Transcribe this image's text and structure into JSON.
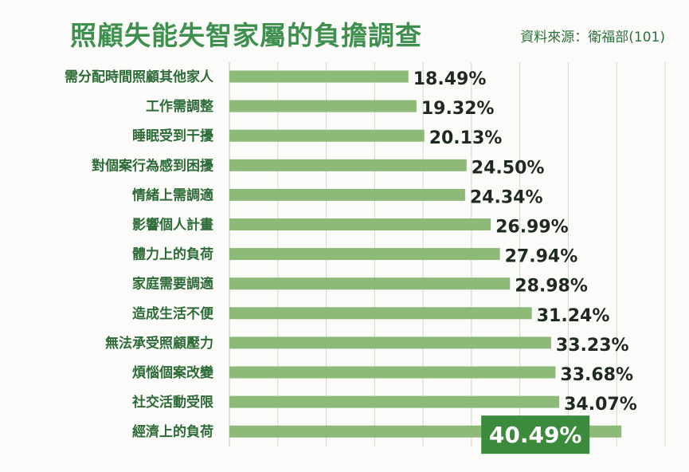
{
  "page": {
    "title": "照顧失能失智家屬的負擔調查",
    "source": "資料來源：衛福部(101)"
  },
  "colors": {
    "bar": "#8dba78",
    "title": "#3f8f4e",
    "label": "#2d6b36",
    "highlight_bg": "#3c8a3b",
    "grid": "#cfd8cc"
  },
  "chart_data": {
    "type": "bar",
    "orientation": "horizontal",
    "title": "照顧失能失智家屬的負擔調查",
    "categories": [
      "需分配時間照顧其他家人",
      "工作需調整",
      "睡眠受到干擾",
      "對個案行為感到困擾",
      "情緒上需調適",
      "影響個人計畫",
      "體力上的負荷",
      "家庭需要調適",
      "造成生活不便",
      "無法承受照顧壓力",
      "煩惱個案改變",
      "社交活動受限",
      "經濟上的負荷"
    ],
    "values": [
      18.49,
      19.32,
      20.13,
      24.5,
      24.34,
      26.99,
      27.94,
      28.98,
      31.24,
      33.23,
      33.68,
      34.07,
      40.49
    ],
    "value_labels": [
      "18.49%",
      "19.32%",
      "20.13%",
      "24.50%",
      "24.34%",
      "26.99%",
      "27.94%",
      "28.98%",
      "31.24%",
      "33.23%",
      "33.68%",
      "34.07%",
      "40.49%"
    ],
    "highlight_index": 12,
    "xlim": [
      0,
      45
    ],
    "grid": true,
    "legend": "none"
  }
}
